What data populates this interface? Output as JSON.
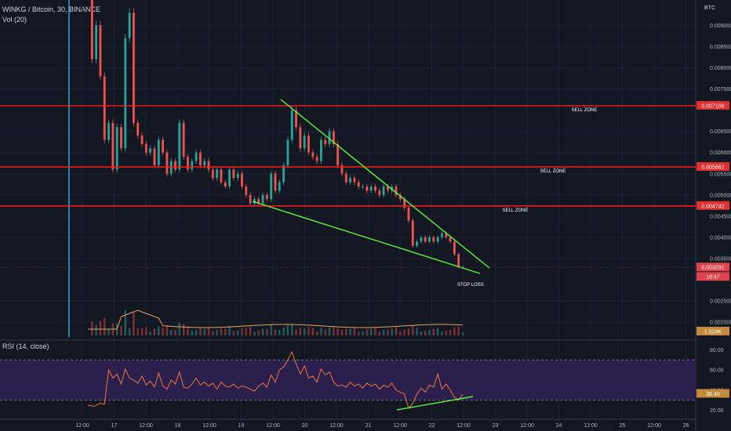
{
  "header": {
    "symbol": "WINKG / Bitcoin, 30, BINANCE",
    "volume_label": "Vol (20)",
    "currency": "BTC",
    "rsi_label": "RSI (14, close)"
  },
  "colors": {
    "background": "#131722",
    "zone_line": "#ff1a1a",
    "trendline": "#5ef542",
    "up_candle": "#26a69a",
    "down_candle": "#ef5350",
    "ma_volume": "#e8a060",
    "rsi_line": "#f0763c",
    "rsi_band": "#2a1f4d",
    "cursor_line": "#26c6da"
  },
  "zones": [
    {
      "price": 0.007106,
      "label": "SELL ZONE",
      "badge": "0.007106"
    },
    {
      "price": 0.005662,
      "label": "SELL ZONE",
      "badge": "0.005662"
    },
    {
      "price": 0.004742,
      "label": "SELL ZONE",
      "badge": "0.004742"
    }
  ],
  "annotations": {
    "stop_loss": "STOP LOSS",
    "last_price": "0.003291",
    "countdown": "18:47",
    "volume_value": "1.524K",
    "rsi_value": "36.40"
  },
  "chart_data": [
    {
      "type": "candlestick",
      "title": "WINKG / Bitcoin, 30, BINANCE",
      "y_axis_unit": "BTC",
      "y_tick_labels": [
        "0.009000",
        "0.008500",
        "0.008000",
        "0.007500",
        "0.006500",
        "0.006000",
        "0.005500",
        "0.005000",
        "0.004500",
        "0.004000",
        "0.003500",
        "0.002500",
        "0.002000"
      ],
      "x_tick_labels": [
        "12:00",
        "17",
        "12:00",
        "18",
        "12:00",
        "19",
        "12:00",
        "20",
        "12:00",
        "21",
        "12:00",
        "22",
        "12:00",
        "23",
        "12:00",
        "24",
        "12:00",
        "25",
        "12:00",
        "26"
      ],
      "ylim": [
        0.00165,
        0.0096
      ],
      "close_path": [
        [
          0,
          0.0096
        ],
        [
          2,
          0.0082
        ],
        [
          4,
          0.009
        ],
        [
          6,
          0.0078
        ],
        [
          8,
          0.0063
        ],
        [
          10,
          0.0067
        ],
        [
          12,
          0.0056
        ],
        [
          14,
          0.0066
        ],
        [
          16,
          0.0061
        ],
        [
          18,
          0.0087
        ],
        [
          20,
          0.0093
        ],
        [
          22,
          0.0067
        ],
        [
          24,
          0.0064
        ],
        [
          26,
          0.0062
        ],
        [
          28,
          0.006
        ],
        [
          30,
          0.0061
        ],
        [
          32,
          0.0057
        ],
        [
          34,
          0.0063
        ],
        [
          36,
          0.006
        ],
        [
          38,
          0.0055
        ],
        [
          40,
          0.0058
        ],
        [
          42,
          0.0056
        ],
        [
          44,
          0.0067
        ],
        [
          46,
          0.0059
        ],
        [
          48,
          0.0056
        ],
        [
          50,
          0.0058
        ],
        [
          52,
          0.006
        ],
        [
          54,
          0.0057
        ],
        [
          56,
          0.0058
        ],
        [
          58,
          0.0056
        ],
        [
          60,
          0.0054
        ],
        [
          62,
          0.0056
        ],
        [
          64,
          0.0053
        ],
        [
          66,
          0.0052
        ],
        [
          68,
          0.0056
        ],
        [
          70,
          0.0054
        ],
        [
          72,
          0.0055
        ],
        [
          74,
          0.0052
        ],
        [
          76,
          0.005
        ],
        [
          78,
          0.0048
        ],
        [
          80,
          0.0049
        ],
        [
          82,
          0.0048
        ],
        [
          84,
          0.005
        ],
        [
          86,
          0.0049
        ],
        [
          88,
          0.0055
        ],
        [
          90,
          0.0051
        ],
        [
          92,
          0.0053
        ],
        [
          94,
          0.0057
        ],
        [
          96,
          0.0063
        ],
        [
          98,
          0.007
        ],
        [
          100,
          0.0066
        ],
        [
          102,
          0.0061
        ],
        [
          104,
          0.0064
        ],
        [
          106,
          0.006
        ],
        [
          108,
          0.0059
        ],
        [
          110,
          0.0058
        ],
        [
          112,
          0.0063
        ],
        [
          114,
          0.0062
        ],
        [
          116,
          0.0065
        ],
        [
          118,
          0.0062
        ],
        [
          120,
          0.0057
        ],
        [
          122,
          0.0055
        ],
        [
          124,
          0.0053
        ],
        [
          126,
          0.0054
        ],
        [
          128,
          0.0053
        ],
        [
          130,
          0.0052
        ],
        [
          132,
          0.0052
        ],
        [
          134,
          0.0051
        ],
        [
          136,
          0.0052
        ],
        [
          138,
          0.0051
        ],
        [
          140,
          0.005
        ],
        [
          142,
          0.0052
        ],
        [
          144,
          0.0051
        ],
        [
          146,
          0.0052
        ],
        [
          148,
          0.005
        ],
        [
          150,
          0.0049
        ],
        [
          152,
          0.0047
        ],
        [
          154,
          0.0044
        ],
        [
          156,
          0.0038
        ],
        [
          158,
          0.0039
        ],
        [
          160,
          0.004
        ],
        [
          162,
          0.0039
        ],
        [
          164,
          0.004
        ],
        [
          166,
          0.0039
        ],
        [
          168,
          0.004
        ],
        [
          170,
          0.0041
        ],
        [
          172,
          0.004
        ],
        [
          174,
          0.0039
        ],
        [
          176,
          0.0036
        ],
        [
          178,
          0.0033
        ],
        [
          180,
          0.0033
        ]
      ],
      "series": [
        {
          "name": "Vol (20)",
          "type": "volume_ma",
          "last_value": "1.524K"
        }
      ]
    },
    {
      "type": "line",
      "title": "RSI (14, close)",
      "y_tick_labels": [
        "80.00",
        "60.00",
        "40.00",
        "20.00"
      ],
      "ylim": [
        15,
        85
      ],
      "band": [
        30,
        70
      ],
      "series": [
        {
          "name": "RSI (14, close)",
          "values": [
            [
              0,
              25
            ],
            [
              3,
              24
            ],
            [
              6,
              27
            ],
            [
              8,
              26
            ],
            [
              10,
              60
            ],
            [
              12,
              52
            ],
            [
              14,
              56
            ],
            [
              16,
              46
            ],
            [
              18,
              61
            ],
            [
              20,
              52
            ],
            [
              22,
              50
            ],
            [
              24,
              47
            ],
            [
              26,
              54
            ],
            [
              28,
              45
            ],
            [
              30,
              49
            ],
            [
              32,
              43
            ],
            [
              34,
              57
            ],
            [
              36,
              44
            ],
            [
              38,
              41
            ],
            [
              40,
              50
            ],
            [
              42,
              46
            ],
            [
              44,
              58
            ],
            [
              46,
              43
            ],
            [
              48,
              42
            ],
            [
              50,
              46
            ],
            [
              52,
              52
            ],
            [
              54,
              45
            ],
            [
              56,
              48
            ],
            [
              58,
              44
            ],
            [
              60,
              47
            ],
            [
              62,
              41
            ],
            [
              64,
              48
            ],
            [
              66,
              44
            ],
            [
              68,
              43
            ],
            [
              70,
              46
            ],
            [
              72,
              42
            ],
            [
              74,
              44
            ],
            [
              76,
              43
            ],
            [
              78,
              41
            ],
            [
              80,
              39
            ],
            [
              82,
              44
            ],
            [
              84,
              47
            ],
            [
              86,
              43
            ],
            [
              88,
              55
            ],
            [
              90,
              48
            ],
            [
              92,
              60
            ],
            [
              94,
              63
            ],
            [
              96,
              70
            ],
            [
              98,
              78
            ],
            [
              100,
              66
            ],
            [
              102,
              56
            ],
            [
              104,
              64
            ],
            [
              106,
              52
            ],
            [
              108,
              54
            ],
            [
              110,
              48
            ],
            [
              112,
              61
            ],
            [
              114,
              55
            ],
            [
              116,
              58
            ],
            [
              118,
              48
            ],
            [
              120,
              44
            ],
            [
              122,
              45
            ],
            [
              124,
              43
            ],
            [
              126,
              48
            ],
            [
              128,
              44
            ],
            [
              130,
              46
            ],
            [
              132,
              42
            ],
            [
              134,
              47
            ],
            [
              136,
              44
            ],
            [
              138,
              46
            ],
            [
              140,
              41
            ],
            [
              142,
              45
            ],
            [
              144,
              43
            ],
            [
              146,
              47
            ],
            [
              148,
              40
            ],
            [
              150,
              38
            ],
            [
              152,
              36
            ],
            [
              154,
              22
            ],
            [
              156,
              27
            ],
            [
              158,
              36
            ],
            [
              160,
              42
            ],
            [
              162,
              38
            ],
            [
              164,
              45
            ],
            [
              166,
              43
            ],
            [
              168,
              56
            ],
            [
              170,
              41
            ],
            [
              172,
              46
            ],
            [
              174,
              40
            ],
            [
              176,
              33
            ],
            [
              178,
              30
            ],
            [
              180,
              36
            ]
          ]
        }
      ]
    }
  ]
}
